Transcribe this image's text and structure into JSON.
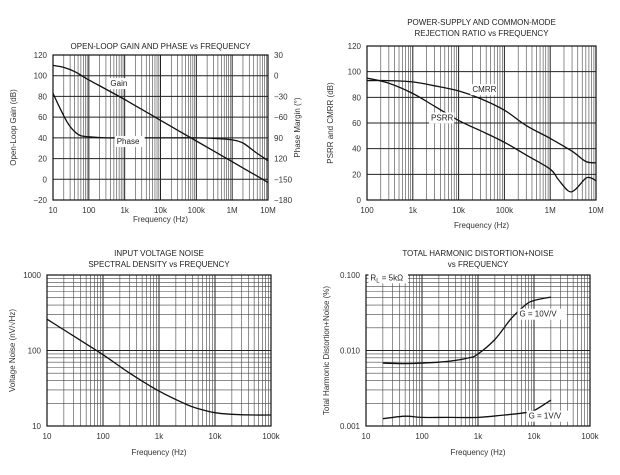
{
  "chart_data": [
    {
      "id": "gain-phase",
      "type": "line",
      "title": [
        "OPEN-LOOP GAIN AND PHASE vs FREQUENCY"
      ],
      "xlabel": "Frequency (Hz)",
      "ylabel": "Open-Loop Gain (dB)",
      "y2label": "Phase Margin (°)",
      "xscale": "log",
      "xlim": [
        10,
        10000000
      ],
      "ylim": [
        -20,
        120
      ],
      "y2lim": [
        -180,
        30
      ],
      "xticks": [
        "10",
        "100",
        "1k",
        "10k",
        "100k",
        "1M",
        "10M"
      ],
      "yticks": [
        "120",
        "100",
        "80",
        "60",
        "40",
        "20",
        "0",
        "−20"
      ],
      "y2ticks": [
        "30",
        "0",
        "−30",
        "−60",
        "90",
        "120",
        "−150",
        "−180"
      ],
      "grid": true,
      "series": [
        {
          "name": "Gain",
          "axis": "left",
          "x": [
            10,
            20,
            40,
            100,
            1000,
            10000,
            100000,
            1000000,
            10000000
          ],
          "y": [
            110,
            108,
            104,
            96,
            77,
            57,
            37,
            17,
            -3
          ]
        },
        {
          "name": "Phase",
          "axis": "left",
          "x": [
            10,
            15,
            25,
            40,
            60,
            100,
            300,
            1000,
            10000,
            100000,
            500000,
            1000000,
            2000000,
            5000000,
            10000000
          ],
          "y": [
            83,
            70,
            55,
            46,
            42,
            41,
            40,
            40,
            40,
            40,
            39,
            38,
            35,
            25,
            18
          ]
        }
      ],
      "annotations": [
        {
          "text": "Gain",
          "x": 400,
          "y": 90
        },
        {
          "text": "Phase",
          "x": 600,
          "y": 34
        }
      ]
    },
    {
      "id": "psrr-cmrr",
      "type": "line",
      "title": [
        "POWER-SUPPLY AND COMMON-MODE",
        "REJECTION RATIO vs FREQUENCY"
      ],
      "xlabel": "Frequency (Hz)",
      "ylabel": "PSRR and CMRR (dB)",
      "xscale": "log",
      "xlim": [
        100,
        10000000
      ],
      "ylim": [
        0,
        120
      ],
      "xticks": [
        "100",
        "1k",
        "10k",
        "100k",
        "1M",
        "10M"
      ],
      "yticks": [
        "120",
        "100",
        "80",
        "60",
        "40",
        "20",
        "0"
      ],
      "grid": true,
      "series": [
        {
          "name": "CMRR",
          "x": [
            100,
            300,
            1000,
            3000,
            10000,
            30000,
            100000,
            300000,
            1000000,
            3000000,
            6000000,
            10000000
          ],
          "y": [
            93,
            93,
            92,
            89,
            85,
            79,
            70,
            58,
            48,
            38,
            30,
            29
          ]
        },
        {
          "name": "PSRR",
          "x": [
            100,
            300,
            1000,
            3000,
            10000,
            30000,
            100000,
            300000,
            1000000,
            1500000,
            2500000,
            3500000,
            6000000,
            8000000,
            10000000
          ],
          "y": [
            95,
            91,
            83,
            73,
            62,
            54,
            45,
            35,
            24,
            16,
            7,
            8,
            17,
            17,
            15
          ]
        }
      ],
      "annotations": [
        {
          "text": "CMRR",
          "x": 20000,
          "y": 84
        },
        {
          "text": "PSRR",
          "x": 2500,
          "y": 62
        }
      ]
    },
    {
      "id": "voltage-noise",
      "type": "line",
      "title": [
        "INPUT VOLTAGE NOISE",
        "SPECTRAL DENSITY vs FREQUENCY"
      ],
      "xlabel": "Frequency (Hz)",
      "ylabel": "Voltage Noise (nV/√Hz)",
      "xscale": "log",
      "yscale": "log",
      "xlim": [
        10,
        100000
      ],
      "ylim": [
        10,
        1000
      ],
      "xticks": [
        "10",
        "100",
        "1k",
        "10k",
        "100k"
      ],
      "yticks": [
        "1000",
        "100",
        "10"
      ],
      "grid": true,
      "series": [
        {
          "name": "Noise",
          "x": [
            10,
            30,
            100,
            300,
            1000,
            3000,
            5000,
            10000,
            20000,
            50000,
            100000
          ],
          "y": [
            260,
            155,
            88,
            50,
            29,
            19.5,
            17,
            15,
            14.3,
            14,
            14
          ]
        }
      ]
    },
    {
      "id": "thd-noise",
      "type": "line",
      "title": [
        "TOTAL HARMONIC DISTORTION+NOISE",
        "vs FREQUENCY"
      ],
      "xlabel": "Frequency (Hz)",
      "ylabel": "Total Harmonic Distortion+Noise (%)",
      "xscale": "log",
      "yscale": "log",
      "xlim": [
        10,
        100000
      ],
      "ylim": [
        0.001,
        0.1
      ],
      "xticks": [
        "10",
        "100",
        "1k",
        "10k",
        "100k"
      ],
      "yticks": [
        "0.100",
        "0.010",
        "0.001"
      ],
      "grid": true,
      "series": [
        {
          "name": "G = 10V/V",
          "x": [
            20,
            50,
            100,
            300,
            700,
            1000,
            2000,
            4000,
            7000,
            10000,
            20000
          ],
          "y": [
            0.0068,
            0.0067,
            0.0068,
            0.0072,
            0.008,
            0.009,
            0.014,
            0.027,
            0.04,
            0.046,
            0.051
          ]
        },
        {
          "name": "G = 1V/V",
          "x": [
            20,
            50,
            100,
            300,
            1000,
            3000,
            7000,
            10000,
            20000
          ],
          "y": [
            0.00125,
            0.00135,
            0.0013,
            0.0013,
            0.0013,
            0.0014,
            0.0015,
            0.0016,
            0.0022
          ]
        }
      ],
      "annotations": [
        {
          "text": "R_L = 5kΩ",
          "x": 12,
          "y": 0.085
        },
        {
          "text": "G = 10V/V",
          "x": 5500,
          "y": 0.028
        },
        {
          "text": "G = 1V/V",
          "x": 8000,
          "y": 0.00125
        }
      ]
    }
  ]
}
